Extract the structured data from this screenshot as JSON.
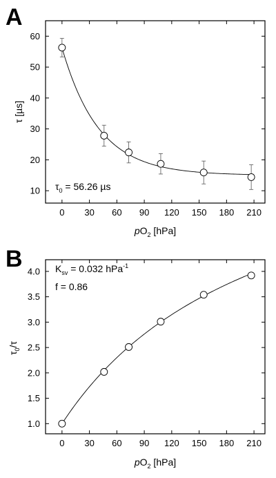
{
  "chart_data": [
    {
      "panel": "A",
      "type": "scatter",
      "xlabel": {
        "prefix": "p",
        "main": "O",
        "sub": "2",
        "suffix": " [hPa]"
      },
      "ylabel": "τ [µs]",
      "xlim": [
        -18,
        222
      ],
      "ylim": [
        6,
        65
      ],
      "xticks": [
        0,
        30,
        60,
        90,
        120,
        150,
        180,
        210
      ],
      "yticks": [
        10,
        20,
        30,
        40,
        50,
        60
      ],
      "grid": false,
      "annotation": {
        "main": "τ",
        "sub": "0",
        "rest": " = 56.26 µs"
      },
      "fit": {
        "type": "exponential-decay",
        "y0": 15.0,
        "A": 41.26,
        "k": 0.0249
      },
      "points": [
        {
          "x": 0,
          "y": 56.3,
          "err": 3.0
        },
        {
          "x": 46,
          "y": 27.8,
          "err": 3.4
        },
        {
          "x": 73,
          "y": 22.4,
          "err": 3.4
        },
        {
          "x": 108,
          "y": 18.7,
          "err": 3.3
        },
        {
          "x": 155,
          "y": 15.9,
          "err": 3.7
        },
        {
          "x": 207,
          "y": 14.4,
          "err": 4.0
        }
      ]
    },
    {
      "panel": "B",
      "type": "scatter",
      "xlabel": {
        "prefix": "p",
        "main": "O",
        "sub": "2",
        "suffix": " [hPa]"
      },
      "ylabel": {
        "main": "τ",
        "sub": "0",
        "rest": "/τ"
      },
      "xlim": [
        -18,
        222
      ],
      "ylim": [
        0.8,
        4.23
      ],
      "xticks": [
        0,
        30,
        60,
        90,
        120,
        150,
        180,
        210
      ],
      "yticks": [
        1.0,
        1.5,
        2.0,
        2.5,
        3.0,
        3.5,
        4.0
      ],
      "ytick_labels": [
        "1.0",
        "1.5",
        "2.0",
        "2.5",
        "3.0",
        "3.5",
        "4.0"
      ],
      "grid": false,
      "annotations": [
        {
          "main": "K",
          "sub": "sv",
          "rest": " = 0.032 hPa",
          "sup": "-1"
        },
        {
          "main": "f = 0.86"
        }
      ],
      "fit": {
        "type": "stern-volmer-two-site",
        "Ksv": 0.032,
        "f": 0.86
      },
      "points": [
        {
          "x": 0,
          "y": 1.0
        },
        {
          "x": 46,
          "y": 2.02
        },
        {
          "x": 73,
          "y": 2.51
        },
        {
          "x": 108,
          "y": 3.01
        },
        {
          "x": 155,
          "y": 3.54
        },
        {
          "x": 207,
          "y": 3.92
        }
      ]
    }
  ]
}
